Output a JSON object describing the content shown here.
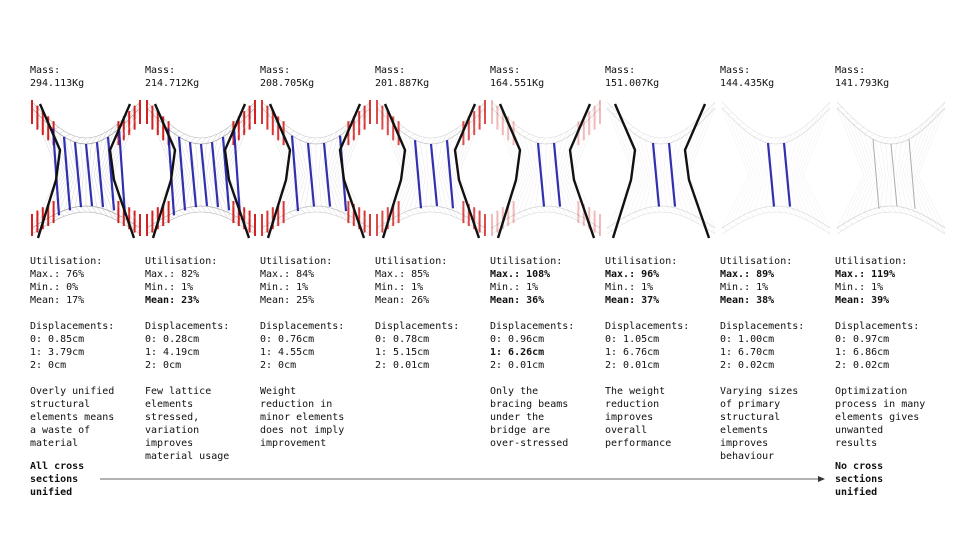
{
  "columns": [
    {
      "mass_label": "Mass:",
      "mass": "294.113Kg",
      "utilisation_label": "Utilisation:",
      "utilisation": [
        {
          "text": "Max.: 76%",
          "bold": false
        },
        {
          "text": "Min.: 0%",
          "bold": false
        },
        {
          "text": "Mean: 17%",
          "bold": false
        }
      ],
      "displacements_label": "Displacements:",
      "displacements": [
        {
          "text": "0: 0.85cm",
          "bold": false
        },
        {
          "text": "1: 3.79cm",
          "bold": false
        },
        {
          "text": "2: 0cm",
          "bold": false
        }
      ],
      "description": [
        "Overly unified",
        "structural",
        "elements means",
        "a waste of",
        "material"
      ]
    },
    {
      "mass_label": "Mass:",
      "mass": "214.712Kg",
      "utilisation_label": "Utilisation:",
      "utilisation": [
        {
          "text": "Max.: 82%",
          "bold": false
        },
        {
          "text": "Min.: 1%",
          "bold": false
        },
        {
          "text": "Mean: 23%",
          "bold": true
        }
      ],
      "displacements_label": "Displacements:",
      "displacements": [
        {
          "text": "0: 0.28cm",
          "bold": false
        },
        {
          "text": "1: 4.19cm",
          "bold": false
        },
        {
          "text": "2: 0cm",
          "bold": false
        }
      ],
      "description": [
        "Few lattice",
        "elements",
        "stressed,",
        "variation",
        "improves",
        "material usage"
      ]
    },
    {
      "mass_label": "Mass:",
      "mass": "208.705Kg",
      "utilisation_label": "Utilisation:",
      "utilisation": [
        {
          "text": "Max.: 84%",
          "bold": false
        },
        {
          "text": "Min.: 1%",
          "bold": false
        },
        {
          "text": "Mean: 25%",
          "bold": false
        }
      ],
      "displacements_label": "Displacements:",
      "displacements": [
        {
          "text": "0: 0.76cm",
          "bold": false
        },
        {
          "text": "1: 4.55cm",
          "bold": false
        },
        {
          "text": "2: 0cm",
          "bold": false
        }
      ],
      "description": [
        "Weight",
        "reduction in",
        "minor elements",
        "does not imply",
        "improvement"
      ]
    },
    {
      "mass_label": "Mass:",
      "mass": "201.887Kg",
      "utilisation_label": "Utilisation:",
      "utilisation": [
        {
          "text": "Max.: 85%",
          "bold": false
        },
        {
          "text": "Min.: 1%",
          "bold": false
        },
        {
          "text": "Mean: 26%",
          "bold": false
        }
      ],
      "displacements_label": "Displacements:",
      "displacements": [
        {
          "text": "0: 0.78cm",
          "bold": false
        },
        {
          "text": "1: 5.15cm",
          "bold": false
        },
        {
          "text": "2: 0.01cm",
          "bold": false
        }
      ],
      "description": []
    },
    {
      "mass_label": "Mass:",
      "mass": "164.551Kg",
      "utilisation_label": "Utilisation:",
      "utilisation": [
        {
          "text": "Max.: 108%",
          "bold": true
        },
        {
          "text": "Min.: 1%",
          "bold": false
        },
        {
          "text": "Mean: 36%",
          "bold": true
        }
      ],
      "displacements_label": "Displacements:",
      "displacements": [
        {
          "text": "0: 0.96cm",
          "bold": false
        },
        {
          "text": "1: 6.26cm",
          "bold": true
        },
        {
          "text": "2: 0.01cm",
          "bold": false
        }
      ],
      "description": [
        "Only the",
        "bracing beams",
        "under the",
        "bridge are",
        "over-stressed"
      ]
    },
    {
      "mass_label": "Mass:",
      "mass": "151.007Kg",
      "utilisation_label": "Utilisation:",
      "utilisation": [
        {
          "text": "Max.: 96%",
          "bold": true
        },
        {
          "text": "Min.: 1%",
          "bold": false
        },
        {
          "text": "Mean: 37%",
          "bold": true
        }
      ],
      "displacements_label": "Displacements:",
      "displacements": [
        {
          "text": "0: 1.05cm",
          "bold": false
        },
        {
          "text": "1: 6.76cm",
          "bold": false
        },
        {
          "text": "2: 0.01cm",
          "bold": false
        }
      ],
      "description": [
        "The weight",
        "reduction",
        "improves",
        "overall",
        "performance"
      ]
    },
    {
      "mass_label": "Mass:",
      "mass": "144.435Kg",
      "utilisation_label": "Utilisation:",
      "utilisation": [
        {
          "text": "Max.: 89%",
          "bold": true
        },
        {
          "text": "Min.: 1%",
          "bold": false
        },
        {
          "text": "Mean: 38%",
          "bold": true
        }
      ],
      "displacements_label": "Displacements:",
      "displacements": [
        {
          "text": "0: 1.00cm",
          "bold": false
        },
        {
          "text": "1: 6.70cm",
          "bold": false
        },
        {
          "text": "2: 0.02cm",
          "bold": false
        }
      ],
      "description": [
        "Varying sizes",
        "of primary",
        "structural",
        "elements",
        "improves",
        "behaviour"
      ]
    },
    {
      "mass_label": "Mass:",
      "mass": "141.793Kg",
      "utilisation_label": "Utilisation:",
      "utilisation": [
        {
          "text": "Max.: 119%",
          "bold": true
        },
        {
          "text": "Min.: 1%",
          "bold": false
        },
        {
          "text": "Mean: 39%",
          "bold": true
        }
      ],
      "displacements_label": "Displacements:",
      "displacements": [
        {
          "text": "0: 0.97cm",
          "bold": false
        },
        {
          "text": "1: 6.86cm",
          "bold": false
        },
        {
          "text": "2: 0.02cm",
          "bold": false
        }
      ],
      "description": [
        "Optimization",
        "process in many",
        "elements gives",
        "unwanted",
        "results"
      ]
    }
  ],
  "footer": {
    "left": [
      "All cross",
      "sections",
      "unified"
    ],
    "right": [
      "No cross",
      "sections",
      "unified"
    ]
  }
}
